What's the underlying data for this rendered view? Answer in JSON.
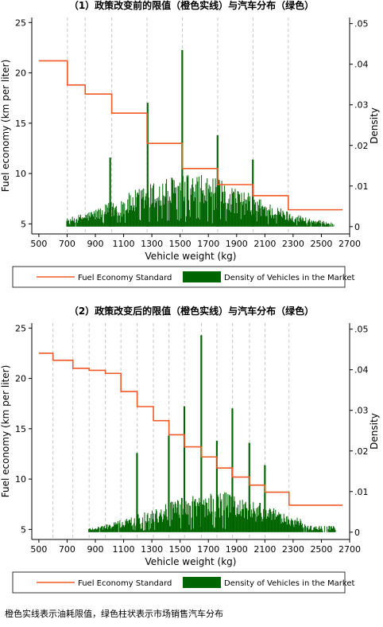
{
  "caption": "橙色实线表示油耗限值，绿色柱状表示市场销售汽车分布",
  "chart_data": [
    {
      "type": "bar",
      "title": "（1）政策改变前的限值（橙色实线）与汽车分布（绿色）",
      "xlabel": "Vehicle weight (kg)",
      "ylabel": "Fuel economy (km per liter)",
      "y2label": "Density",
      "xlim": [
        450,
        2700
      ],
      "ylim": [
        4,
        25.5
      ],
      "y2lim": [
        -0.0018,
        0.0515
      ],
      "xticks": [
        500,
        700,
        900,
        1100,
        1300,
        1500,
        1700,
        1900,
        2100,
        2300,
        2500,
        2700
      ],
      "yticks": [
        5,
        10,
        15,
        20,
        25
      ],
      "y2ticks": [
        0,
        0.01,
        0.02,
        0.03,
        0.04,
        0.05
      ],
      "y2tick_labels": [
        "0",
        ".01",
        ".02",
        ".03",
        ".04",
        ".05"
      ],
      "grid": "vertical dashed lines at standard steps",
      "legend_position": "bottom",
      "legend": [
        "Fuel Economy Standard",
        "Density of Vehicles in the Market"
      ],
      "colors": {
        "standard": "#f05a28",
        "density": "#006400",
        "grid": "#c8c8c8"
      },
      "standard_steps": [
        {
          "x0": 500,
          "x1": 702,
          "y": 21.2
        },
        {
          "x0": 702,
          "x1": 828,
          "y": 18.8
        },
        {
          "x0": 828,
          "x1": 1016,
          "y": 17.9
        },
        {
          "x0": 1016,
          "x1": 1266,
          "y": 16.0
        },
        {
          "x0": 1266,
          "x1": 1516,
          "y": 13.0
        },
        {
          "x0": 1516,
          "x1": 1766,
          "y": 10.5
        },
        {
          "x0": 1766,
          "x1": 2016,
          "y": 8.9
        },
        {
          "x0": 2016,
          "x1": 2266,
          "y": 7.8
        },
        {
          "x0": 2266,
          "x1": 2650,
          "y": 6.4
        }
      ],
      "density_x_range": [
        690,
        2590
      ],
      "density_spikes": [
        {
          "x": 1005,
          "y": 0.017
        },
        {
          "x": 1270,
          "y": 0.0305
        },
        {
          "x": 1515,
          "y": 0.0435
        },
        {
          "x": 1765,
          "y": 0.0225
        },
        {
          "x": 2015,
          "y": 0.0165
        }
      ]
    },
    {
      "type": "bar",
      "title": "（2）政策改变后的限值（橙色实线）与汽车分布（绿色）",
      "xlabel": "Vehicle weight (kg)",
      "ylabel": "Fuel economy (km per liter)",
      "y2label": "Density",
      "xlim": [
        450,
        2700
      ],
      "ylim": [
        4,
        25.5
      ],
      "y2lim": [
        -0.0018,
        0.0515
      ],
      "xticks": [
        500,
        700,
        900,
        1100,
        1300,
        1500,
        1700,
        1900,
        2100,
        2300,
        2500,
        2700
      ],
      "yticks": [
        5,
        10,
        15,
        20,
        25
      ],
      "y2ticks": [
        0,
        0.01,
        0.02,
        0.03,
        0.04,
        0.05
      ],
      "y2tick_labels": [
        "0",
        ".01",
        ".02",
        ".03",
        ".04",
        ".05"
      ],
      "grid": "vertical dashed lines at standard steps",
      "legend_position": "bottom",
      "legend": [
        "Fuel Economy Standard",
        "Density of Vehicles in the Market"
      ],
      "colors": {
        "standard": "#f05a28",
        "density": "#006400",
        "grid": "#c8c8c8"
      },
      "standard_steps": [
        {
          "x0": 500,
          "x1": 600,
          "y": 22.5
        },
        {
          "x0": 600,
          "x1": 741,
          "y": 21.8
        },
        {
          "x0": 741,
          "x1": 856,
          "y": 21.0
        },
        {
          "x0": 856,
          "x1": 971,
          "y": 20.8
        },
        {
          "x0": 971,
          "x1": 1081,
          "y": 20.5
        },
        {
          "x0": 1081,
          "x1": 1196,
          "y": 18.7
        },
        {
          "x0": 1196,
          "x1": 1311,
          "y": 17.2
        },
        {
          "x0": 1311,
          "x1": 1421,
          "y": 15.8
        },
        {
          "x0": 1421,
          "x1": 1531,
          "y": 14.4
        },
        {
          "x0": 1531,
          "x1": 1651,
          "y": 13.2
        },
        {
          "x0": 1651,
          "x1": 1761,
          "y": 12.2
        },
        {
          "x0": 1761,
          "x1": 1871,
          "y": 11.1
        },
        {
          "x0": 1871,
          "x1": 1991,
          "y": 10.2
        },
        {
          "x0": 1991,
          "x1": 2101,
          "y": 9.4
        },
        {
          "x0": 2101,
          "x1": 2271,
          "y": 8.7
        },
        {
          "x0": 2271,
          "x1": 2650,
          "y": 7.4
        }
      ],
      "density_x_range": [
        850,
        2600
      ],
      "density_spikes": [
        {
          "x": 1195,
          "y": 0.0195
        },
        {
          "x": 1420,
          "y": 0.0238
        },
        {
          "x": 1530,
          "y": 0.031
        },
        {
          "x": 1650,
          "y": 0.0485
        },
        {
          "x": 1760,
          "y": 0.0225
        },
        {
          "x": 1870,
          "y": 0.0305
        },
        {
          "x": 1990,
          "y": 0.022
        },
        {
          "x": 2100,
          "y": 0.0165
        }
      ]
    }
  ]
}
